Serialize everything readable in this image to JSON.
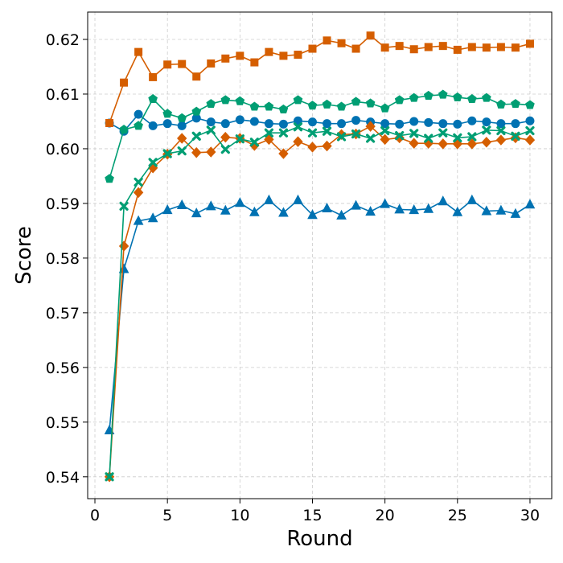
{
  "chart_data": {
    "type": "line",
    "title": "",
    "xlabel": "Round",
    "ylabel": "Score",
    "xlim": [
      -0.5,
      31.5
    ],
    "ylim": [
      0.536,
      0.625
    ],
    "xticks": [
      0,
      5,
      10,
      15,
      20,
      25,
      30
    ],
    "yticks": [
      0.54,
      0.55,
      0.56,
      0.57,
      0.58,
      0.59,
      0.6,
      0.61,
      0.62
    ],
    "grid": true,
    "x": [
      1,
      2,
      3,
      4,
      5,
      6,
      7,
      8,
      9,
      10,
      11,
      12,
      13,
      14,
      15,
      16,
      17,
      18,
      19,
      20,
      21,
      22,
      23,
      24,
      25,
      26,
      27,
      28,
      29,
      30
    ],
    "series": [
      {
        "name": "blue-circle",
        "color": "#0072B2",
        "marker": "circle",
        "values": [
          0.6047,
          0.6032,
          0.6063,
          0.6042,
          0.6046,
          0.6042,
          0.6056,
          0.6049,
          0.6046,
          0.6053,
          0.605,
          0.6046,
          0.6045,
          0.6051,
          0.6049,
          0.6046,
          0.6046,
          0.6052,
          0.6049,
          0.6046,
          0.6045,
          0.605,
          0.6048,
          0.6046,
          0.6045,
          0.6051,
          0.6049,
          0.6046,
          0.6046,
          0.6051
        ]
      },
      {
        "name": "blue-triangle",
        "color": "#0072B2",
        "marker": "triangle",
        "values": [
          0.5485,
          0.578,
          0.5868,
          0.5873,
          0.5888,
          0.5897,
          0.5882,
          0.5895,
          0.5887,
          0.5901,
          0.5884,
          0.5906,
          0.5883,
          0.5906,
          0.5879,
          0.5891,
          0.5878,
          0.5896,
          0.5885,
          0.5899,
          0.5889,
          0.5888,
          0.589,
          0.5904,
          0.5884,
          0.5906,
          0.5886,
          0.5887,
          0.5881,
          0.5898
        ]
      },
      {
        "name": "orange-square",
        "color": "#D55E00",
        "marker": "square",
        "values": [
          0.6047,
          0.6121,
          0.6177,
          0.6131,
          0.6154,
          0.6155,
          0.6132,
          0.6156,
          0.6165,
          0.617,
          0.6158,
          0.6177,
          0.617,
          0.6172,
          0.6183,
          0.6198,
          0.6193,
          0.6183,
          0.6207,
          0.6185,
          0.6188,
          0.6182,
          0.6186,
          0.6188,
          0.6181,
          0.6186,
          0.6185,
          0.6186,
          0.6185,
          0.6192
        ]
      },
      {
        "name": "orange-diamond",
        "color": "#D55E00",
        "marker": "diamond",
        "values": [
          0.54,
          0.5822,
          0.592,
          0.5965,
          0.599,
          0.6019,
          0.5993,
          0.5994,
          0.6021,
          0.6019,
          0.6006,
          0.6017,
          0.5991,
          0.6013,
          0.6003,
          0.6005,
          0.6026,
          0.6027,
          0.6041,
          0.6017,
          0.602,
          0.601,
          0.601,
          0.6009,
          0.6009,
          0.6009,
          0.6012,
          0.6016,
          0.602,
          0.6016
        ]
      },
      {
        "name": "green-pentagon",
        "color": "#009E73",
        "marker": "pentagon",
        "values": [
          0.5945,
          0.6035,
          0.6042,
          0.6091,
          0.6064,
          0.6056,
          0.6068,
          0.6082,
          0.6089,
          0.6087,
          0.6077,
          0.6077,
          0.6072,
          0.6089,
          0.6079,
          0.6081,
          0.6077,
          0.6086,
          0.6083,
          0.6074,
          0.6089,
          0.6093,
          0.6097,
          0.6099,
          0.6094,
          0.6091,
          0.6093,
          0.6081,
          0.6082,
          0.608
        ]
      },
      {
        "name": "green-x",
        "color": "#009E73",
        "marker": "x",
        "values": [
          0.54,
          0.5895,
          0.5939,
          0.5975,
          0.5991,
          0.5996,
          0.6023,
          0.6034,
          0.5999,
          0.6018,
          0.6012,
          0.6029,
          0.6029,
          0.604,
          0.6029,
          0.6032,
          0.6022,
          0.6027,
          0.6019,
          0.6033,
          0.6024,
          0.6028,
          0.6019,
          0.6029,
          0.602,
          0.6022,
          0.6034,
          0.6033,
          0.6023,
          0.6033
        ]
      }
    ]
  }
}
